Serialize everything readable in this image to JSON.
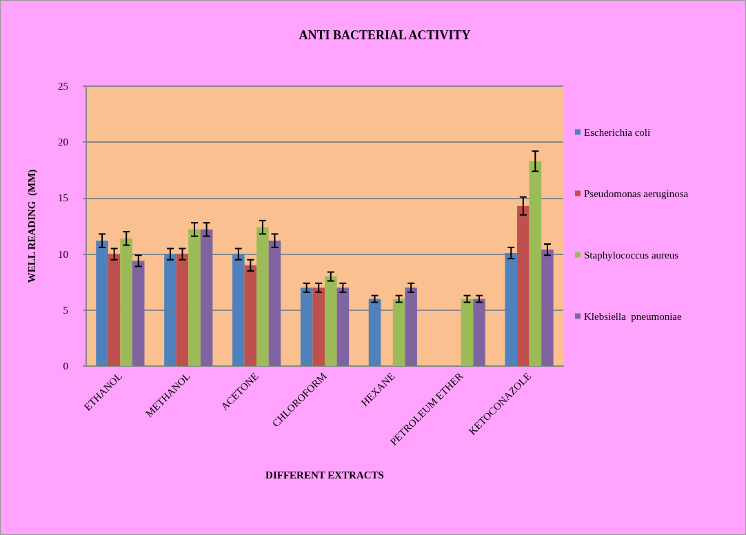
{
  "chart_data": {
    "type": "bar",
    "title": "ANTI BACTERIAL ACTIVITY",
    "xlabel": "DIFFERENT EXTRACTS",
    "ylabel": "WELL READING  (MM)",
    "categories": [
      "ETHANOL",
      "METHANOL",
      "ACETONE",
      "CHLOROFORM",
      "HEXANE",
      "PETROLEUM ETHER",
      "KETOCONAZOLE"
    ],
    "series": [
      {
        "name": "Escherichia coli",
        "color": "#4f81bd",
        "values": [
          11.2,
          10,
          10,
          7,
          6,
          null,
          10.1
        ],
        "errors": [
          0.6,
          0.5,
          0.5,
          0.4,
          0.3,
          null,
          0.5
        ]
      },
      {
        "name": "Pseudomonas aeruginosa",
        "color": "#c0504d",
        "values": [
          10,
          10,
          9,
          7,
          null,
          null,
          14.3
        ],
        "errors": [
          0.5,
          0.5,
          0.5,
          0.4,
          null,
          null,
          0.8
        ]
      },
      {
        "name": "Staphylococcus aureus",
        "color": "#9bbb59",
        "values": [
          11.4,
          12.2,
          12.4,
          8,
          6,
          6,
          18.3
        ],
        "errors": [
          0.6,
          0.6,
          0.6,
          0.4,
          0.3,
          0.3,
          0.9
        ]
      },
      {
        "name": "Klebsiella  pneumoniae",
        "color": "#8064a2",
        "values": [
          9.4,
          12.2,
          11.2,
          7,
          7,
          6,
          10.4
        ],
        "errors": [
          0.5,
          0.6,
          0.6,
          0.4,
          0.4,
          0.3,
          0.5
        ]
      }
    ],
    "ylim": [
      0,
      25
    ],
    "yticks": [
      0,
      5,
      10,
      15,
      20,
      25
    ],
    "grid": "y",
    "legend": "right"
  }
}
